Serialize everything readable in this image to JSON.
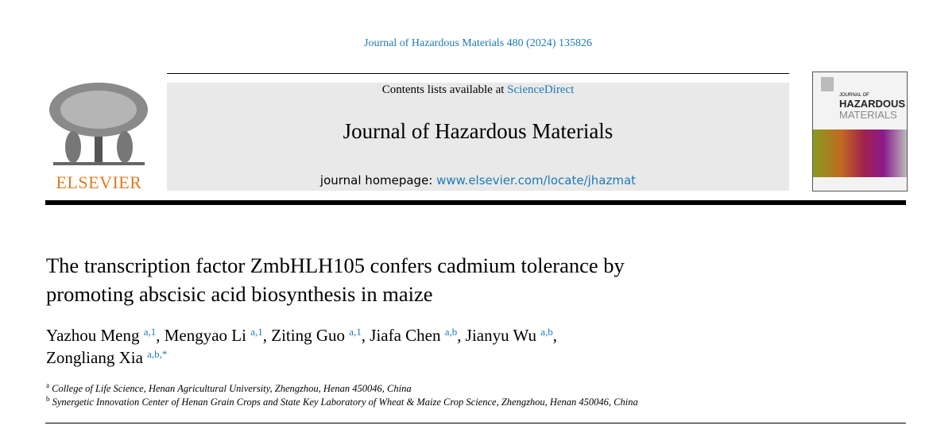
{
  "citation": "Journal of Hazardous Materials 480 (2024) 135826",
  "publisher_logo": {
    "text": "ELSEVIER",
    "color": "#e07b22"
  },
  "header": {
    "contents_prefix": "Contents lists available at ",
    "contents_link": "ScienceDirect",
    "journal_title": "Journal of Hazardous Materials",
    "homepage_prefix": "journal homepage: ",
    "homepage_link": "www.elsevier.com/locate/jhazmat"
  },
  "cover": {
    "line1": "JOURNAL OF",
    "line2": "HAZARDOUS",
    "line3": "MATERIALS"
  },
  "article": {
    "title_line1": "The transcription factor ZmbHLH105 confers cadmium tolerance by",
    "title_line2": "promoting abscisic acid biosynthesis in maize",
    "authors": [
      {
        "name": "Yazhou Meng",
        "sup": "a,1",
        "sep": ", "
      },
      {
        "name": "Mengyao Li",
        "sup": "a,1",
        "sep": ", "
      },
      {
        "name": "Ziting Guo",
        "sup": "a,1",
        "sep": ", "
      },
      {
        "name": "Jiafa Chen",
        "sup": "a,b",
        "sep": ", "
      },
      {
        "name": "Jianyu Wu",
        "sup": "a,b",
        "sep": ","
      },
      {
        "name": "Zongliang Xia",
        "sup": "a,b,*",
        "sep": ""
      }
    ],
    "affiliations": [
      {
        "label": "a",
        "text": "College of Life Science, Henan Agricultural University, Zhengzhou, Henan 450046, China"
      },
      {
        "label": "b",
        "text": "Synergetic Innovation Center of Henan Grain Crops and State Key Laboratory of Wheat & Maize Crop Science, Zhengzhou, Henan 450046, China"
      }
    ]
  },
  "colors": {
    "link": "#1d7ab8",
    "band": "#e9e9e9"
  }
}
